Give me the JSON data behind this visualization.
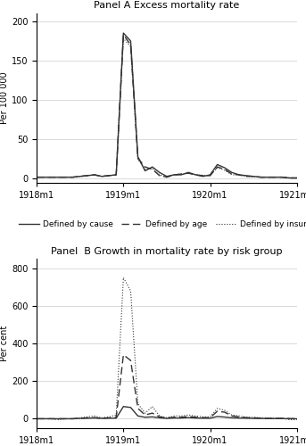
{
  "panel_a_title": "Panel A Excess mortality rate",
  "panel_b_title": "Panel  B Growth in mortality rate by risk group",
  "panel_a_ylabel": "Per 100 000",
  "panel_b_ylabel": "Per cent",
  "x_tick_labels": [
    "1918m1",
    "1919m1",
    "1920m1",
    "1921m1"
  ],
  "panel_a_ylim": [
    -5,
    210
  ],
  "panel_a_yticks": [
    0,
    50,
    100,
    150,
    200
  ],
  "panel_b_ylim": [
    -50,
    850
  ],
  "panel_b_yticks": [
    0,
    200,
    400,
    600,
    800
  ],
  "n_months": 37,
  "cause_data": [
    2,
    2,
    2,
    2,
    2,
    2,
    3,
    4,
    5,
    3,
    4,
    5,
    185,
    175,
    28,
    10,
    15,
    8,
    3,
    5,
    5,
    8,
    5,
    3,
    5,
    18,
    14,
    8,
    5,
    4,
    3,
    2,
    2,
    2,
    2,
    1,
    1
  ],
  "age_data": [
    2,
    2,
    2,
    2,
    2,
    2,
    3,
    4,
    5,
    3,
    4,
    5,
    183,
    170,
    26,
    15,
    12,
    4,
    2,
    5,
    6,
    7,
    5,
    4,
    4,
    15,
    12,
    6,
    5,
    3,
    3,
    2,
    2,
    2,
    2,
    1,
    1
  ],
  "insurer_data": [
    2,
    2,
    2,
    2,
    2,
    2,
    3,
    4,
    5,
    3,
    4,
    5,
    178,
    168,
    25,
    12,
    13,
    5,
    2,
    5,
    6,
    7,
    5,
    4,
    4,
    14,
    11,
    5,
    5,
    3,
    3,
    2,
    2,
    2,
    2,
    1,
    1
  ],
  "low_data": [
    0,
    0,
    0,
    0,
    0,
    0,
    2,
    3,
    4,
    2,
    3,
    3,
    65,
    60,
    15,
    8,
    10,
    5,
    2,
    4,
    4,
    6,
    4,
    3,
    3,
    12,
    9,
    5,
    4,
    3,
    2,
    2,
    1,
    1,
    1,
    0,
    0
  ],
  "medium_data": [
    0,
    0,
    0,
    0,
    0,
    0,
    3,
    5,
    6,
    3,
    5,
    8,
    340,
    310,
    55,
    20,
    30,
    10,
    4,
    8,
    8,
    12,
    8,
    6,
    6,
    40,
    35,
    15,
    10,
    6,
    5,
    3,
    2,
    2,
    2,
    1,
    1
  ],
  "high_data": [
    0,
    0,
    0,
    -5,
    0,
    0,
    5,
    10,
    15,
    5,
    10,
    20,
    750,
    680,
    80,
    30,
    65,
    15,
    5,
    15,
    15,
    20,
    15,
    10,
    10,
    55,
    45,
    20,
    15,
    8,
    8,
    5,
    3,
    3,
    3,
    -5,
    -5
  ],
  "line_color": "#333333",
  "background_color": "#ffffff",
  "grid_color": "#cccccc"
}
